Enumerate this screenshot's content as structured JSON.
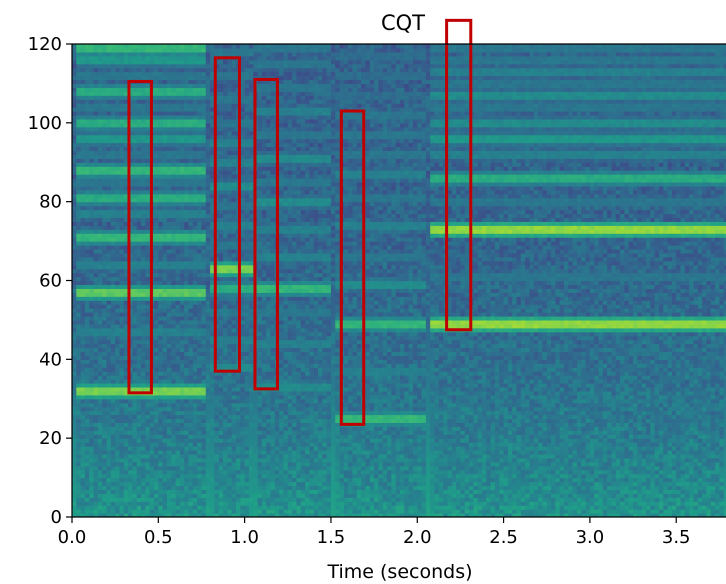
{
  "chart_data": {
    "type": "heatmap",
    "title": "CQT",
    "xlabel": "Time (seconds)",
    "ylabel": "",
    "xlim": [
      0.0,
      3.8
    ],
    "ylim": [
      0,
      120
    ],
    "x_ticks": [
      {
        "value": 0.0,
        "label": "0.0"
      },
      {
        "value": 0.5,
        "label": "0.5"
      },
      {
        "value": 1.0,
        "label": "1.0"
      },
      {
        "value": 1.5,
        "label": "1.5"
      },
      {
        "value": 2.0,
        "label": "2.0"
      },
      {
        "value": 2.5,
        "label": "2.5"
      },
      {
        "value": 3.0,
        "label": "3.0"
      },
      {
        "value": 3.5,
        "label": "3.5"
      }
    ],
    "y_ticks": [
      {
        "value": 0,
        "label": "0"
      },
      {
        "value": 20,
        "label": "20"
      },
      {
        "value": 40,
        "label": "40"
      },
      {
        "value": 60,
        "label": "60"
      },
      {
        "value": 80,
        "label": "80"
      },
      {
        "value": 100,
        "label": "100"
      },
      {
        "value": 120,
        "label": "120"
      }
    ],
    "colormap": "viridis",
    "segment_boundaries": [
      0.0,
      0.8,
      1.05,
      1.52,
      2.07,
      3.8
    ],
    "harmonic_bands": [
      {
        "t0": 0.02,
        "t1": 0.78,
        "bins": [
          32,
          47,
          57,
          64,
          71,
          77,
          81,
          85,
          88,
          92,
          96,
          100,
          104,
          108,
          112,
          116,
          119
        ],
        "strength": [
          0.9,
          0.5,
          0.85,
          0.5,
          0.75,
          0.5,
          0.7,
          0.45,
          0.75,
          0.45,
          0.6,
          0.7,
          0.45,
          0.7,
          0.45,
          0.6,
          0.75
        ]
      },
      {
        "t0": 0.8,
        "t1": 1.04,
        "bins": [
          38,
          45,
          52,
          58,
          63,
          69,
          74,
          79,
          84,
          90,
          95,
          100,
          106,
          112,
          118
        ],
        "strength": [
          0.55,
          0.5,
          0.45,
          0.7,
          0.9,
          0.45,
          0.5,
          0.45,
          0.55,
          0.5,
          0.5,
          0.45,
          0.45,
          0.45,
          0.45
        ]
      },
      {
        "t0": 1.05,
        "t1": 1.5,
        "bins": [
          33,
          44,
          52,
          58,
          66,
          73,
          80,
          85,
          91,
          97,
          103,
          109,
          115,
          119
        ],
        "strength": [
          0.55,
          0.5,
          0.45,
          0.75,
          0.5,
          0.5,
          0.55,
          0.45,
          0.55,
          0.45,
          0.5,
          0.45,
          0.45,
          0.45
        ]
      },
      {
        "t0": 1.53,
        "t1": 2.05,
        "bins": [
          25,
          37,
          49,
          59,
          66,
          74,
          81,
          87,
          92,
          97,
          102,
          107,
          112,
          117
        ],
        "strength": [
          0.75,
          0.5,
          0.75,
          0.55,
          0.45,
          0.5,
          0.45,
          0.5,
          0.45,
          0.45,
          0.45,
          0.4,
          0.4,
          0.4
        ]
      },
      {
        "t0": 2.08,
        "t1": 3.8,
        "bins": [
          49,
          61,
          73,
          80,
          86,
          92,
          96,
          100,
          104,
          107,
          110,
          113,
          116,
          119
        ],
        "strength": [
          0.95,
          0.45,
          0.95,
          0.45,
          0.7,
          0.5,
          0.6,
          0.55,
          0.45,
          0.55,
          0.45,
          0.5,
          0.45,
          0.45
        ]
      }
    ],
    "annotations": [
      {
        "shape": "rectangle",
        "color": "#c00000",
        "x0": 0.33,
        "x1": 0.46,
        "y0": 31.5,
        "y1": 110.5
      },
      {
        "shape": "rectangle",
        "color": "#c00000",
        "x0": 0.83,
        "x1": 0.97,
        "y0": 37,
        "y1": 116.5
      },
      {
        "shape": "rectangle",
        "color": "#c00000",
        "x0": 1.06,
        "x1": 1.19,
        "y0": 32.5,
        "y1": 111
      },
      {
        "shape": "rectangle",
        "color": "#c00000",
        "x0": 1.56,
        "x1": 1.69,
        "y0": 23.5,
        "y1": 103
      },
      {
        "shape": "rectangle",
        "color": "#c00000",
        "x0": 2.17,
        "x1": 2.31,
        "y0": 47.5,
        "y1": 126
      }
    ]
  }
}
